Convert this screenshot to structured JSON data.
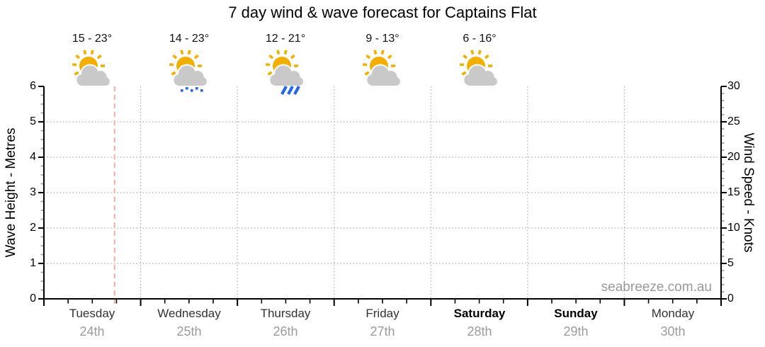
{
  "title": "7 day wind & wave forecast for Captains Flat",
  "watermark": "seabreeze.com.au",
  "axes": {
    "left": {
      "label": "Wave Height - Metres",
      "ticks": [
        "0",
        "1",
        "2",
        "3",
        "4",
        "5",
        "6"
      ]
    },
    "right": {
      "label": "Wind Speed - Knots",
      "ticks": [
        "0",
        "5",
        "10",
        "15",
        "20",
        "25",
        "30"
      ]
    }
  },
  "days": [
    {
      "name": "Tuesday",
      "date": "24th",
      "temp": "15 - 23°",
      "icon": "partly-cloudy",
      "weekend": false
    },
    {
      "name": "Wednesday",
      "date": "25th",
      "temp": "14 - 23°",
      "icon": "showers",
      "weekend": false
    },
    {
      "name": "Thursday",
      "date": "26th",
      "temp": "12 - 21°",
      "icon": "rain",
      "weekend": false
    },
    {
      "name": "Friday",
      "date": "27th",
      "temp": "9 - 13°",
      "icon": "partly-cloudy",
      "weekend": false
    },
    {
      "name": "Saturday",
      "date": "28th",
      "temp": "6 - 16°",
      "icon": "partly-cloudy",
      "weekend": true
    },
    {
      "name": "Sunday",
      "date": "29th",
      "temp": "",
      "icon": "",
      "weekend": true
    },
    {
      "name": "Monday",
      "date": "30th",
      "temp": "",
      "icon": "",
      "weekend": false
    }
  ],
  "colors": {
    "sun": "#F3AF00",
    "cloud": "#C9C9C9",
    "rain_blue": "#2268E8",
    "grid": "#ababab",
    "minor_tick": "#999999",
    "now_line": "#F6AAA6",
    "date_gray": "#9b9b9b",
    "watermark_gray": "#999999"
  },
  "chart_data": {
    "type": "line",
    "title": "7 day wind & wave forecast for Captains Flat",
    "x_categories": [
      "Tuesday 24th",
      "Wednesday 25th",
      "Thursday 26th",
      "Friday 27th",
      "Saturday 28th",
      "Sunday 29th",
      "Monday 30th"
    ],
    "left_axis": {
      "label": "Wave Height - Metres",
      "range": [
        0,
        6
      ],
      "major_step": 1,
      "minor_step": 0.25
    },
    "right_axis": {
      "label": "Wind Speed - Knots",
      "range": [
        0,
        30
      ],
      "major_step": 5,
      "minor_step": 1
    },
    "series": [],
    "grid": true,
    "x_minor_ticks_per_day": 4,
    "now_marker": {
      "day": "Tuesday",
      "fraction_of_day": 0.73
    },
    "daily_forecast": [
      {
        "day": "Tuesday",
        "date": "24th",
        "temp_low": 15,
        "temp_high": 23,
        "condition": "partly-cloudy"
      },
      {
        "day": "Wednesday",
        "date": "25th",
        "temp_low": 14,
        "temp_high": 23,
        "condition": "showers"
      },
      {
        "day": "Thursday",
        "date": "26th",
        "temp_low": 12,
        "temp_high": 21,
        "condition": "rain"
      },
      {
        "day": "Friday",
        "date": "27th",
        "temp_low": 9,
        "temp_high": 13,
        "condition": "partly-cloudy"
      },
      {
        "day": "Saturday",
        "date": "28th",
        "temp_low": 6,
        "temp_high": 16,
        "condition": "partly-cloudy"
      }
    ]
  }
}
